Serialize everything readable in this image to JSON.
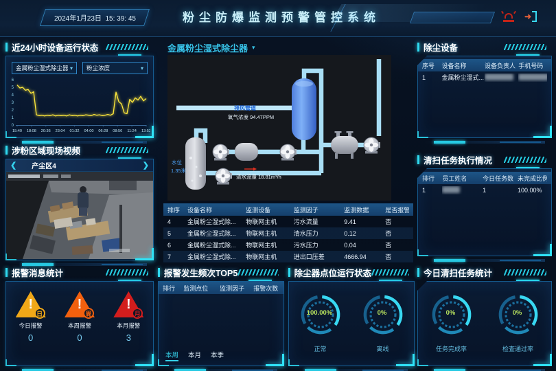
{
  "header": {
    "date": "2024年1月23日",
    "time": "15: 39: 45",
    "title": "粉尘防爆监测预警管控系统"
  },
  "left": {
    "device_status": {
      "title": "近24小时设备运行状态",
      "device_select": "金属粉尘湿式除尘器",
      "metric_select": "粉尘浓度",
      "chart": {
        "type": "line",
        "color": "#ffe93c",
        "ylim": [
          0,
          6
        ],
        "yticks": [
          0,
          1,
          2,
          3,
          4,
          5,
          6
        ],
        "xticks": [
          "15:40",
          "18:08",
          "20:36",
          "23:04",
          "01:32",
          "04:00",
          "06:28",
          "08:56",
          "11:24",
          "13:52"
        ],
        "values": [
          5.3,
          4.9,
          5.0,
          4.6,
          4.7,
          4.2,
          4.4,
          1.35,
          1.25,
          1.3,
          1.2,
          1.3,
          1.25,
          1.35,
          1.2,
          1.3,
          1.25,
          1.3,
          1.2,
          1.35,
          1.25,
          1.3,
          1.2,
          1.3,
          1.25,
          1.35,
          1.3,
          1.25,
          1.4,
          1.3,
          1.35,
          1.25,
          1.3,
          1.4,
          1.3,
          1.5,
          4.35,
          3.1,
          2.8,
          1.6,
          1.5,
          3.4,
          3.0,
          3.6,
          3.3,
          3.8,
          3.2,
          3.5
        ]
      }
    },
    "video": {
      "title": "涉粉区域现场视频",
      "camera": "产尘区4",
      "prev": "❮",
      "next": "❯"
    },
    "alarms": {
      "title": "报警消息统计",
      "items": [
        {
          "badge": "日",
          "label": "今日报警",
          "value": "0",
          "color": "#f0a califor818"
        },
        {
          "badge": "周",
          "label": "本周报警",
          "value": "0",
          "color": "#f2600e"
        },
        {
          "badge": "月",
          "label": "本月报警",
          "value": "3",
          "color": "#d31d1d"
        }
      ]
    }
  },
  "center": {
    "main": {
      "title": "金属粉尘湿式除尘器",
      "diagram": {
        "pipe_label": "排风管道",
        "gas_label": "氧气浓度 94.47PPM",
        "water_level_label": "水位",
        "water_level_value": "1.35米",
        "flow_label": "清水流量 18.81m³/h"
      },
      "table": {
        "headers": [
          "排序",
          "设备名称",
          "监测设备",
          "监测因子",
          "监测数据",
          "是否报警"
        ],
        "rows": [
          [
            "4",
            "金属粉尘湿式除...",
            "物联网主机",
            "污水流量",
            "9.41",
            "否"
          ],
          [
            "5",
            "金属粉尘湿式除...",
            "物联网主机",
            "清水压力",
            "0.12",
            "否"
          ],
          [
            "6",
            "金属粉尘湿式除...",
            "物联网主机",
            "污水压力",
            "0.04",
            "否"
          ],
          [
            "7",
            "金属粉尘湿式除...",
            "物联网主机",
            "进出口压差",
            "4666.94",
            "否"
          ]
        ]
      }
    },
    "top5": {
      "title": "报警发生频次TOP5",
      "headers": [
        "排行",
        "监测点位",
        "监测因子",
        "报警次数"
      ],
      "rows": [],
      "tabs": [
        "本周",
        "本月",
        "本季"
      ],
      "active_tab": "本周"
    },
    "point_status": {
      "title": "除尘器点位运行状态",
      "gauges": [
        {
          "value": "100.00%",
          "label": "正常"
        },
        {
          "value": "0%",
          "label": "离线"
        }
      ]
    }
  },
  "right": {
    "equipment": {
      "title": "除尘设备",
      "headers": [
        "序号",
        "设备名称",
        "设备负责人",
        "手机号码"
      ],
      "rows": [
        {
          "no": "1",
          "name": "金属粉尘湿式...",
          "owner_redacted": true,
          "phone_redacted": true
        }
      ]
    },
    "cleaning": {
      "title": "清扫任务执行情况",
      "headers": [
        "排行",
        "员工姓名",
        "今日任务数",
        "未完成比例"
      ],
      "rows": [
        {
          "rank": "1",
          "name_redacted": true,
          "tasks": "1",
          "ratio": "100.00%"
        }
      ]
    },
    "today_stats": {
      "title": "今日清扫任务统计",
      "gauges": [
        {
          "value": "0%",
          "label": "任务完成率"
        },
        {
          "value": "0%",
          "label": "检查通过率"
        }
      ]
    }
  }
}
